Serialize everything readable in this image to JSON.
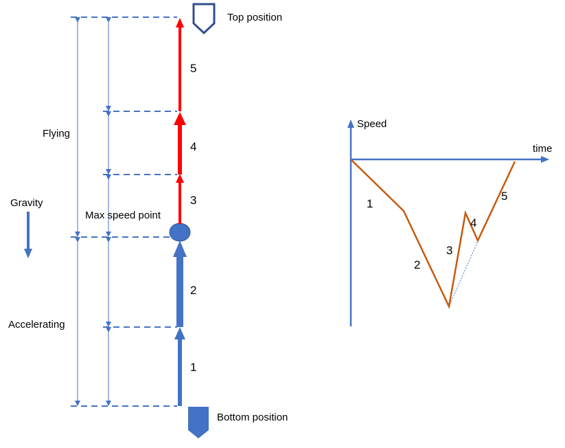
{
  "labels": {
    "top_position": "Top position",
    "bottom_position": "Bottom position",
    "flying": "Flying",
    "gravity": "Gravity",
    "max_speed_point": "Max speed point",
    "accelerating": "Accelerating",
    "speed_axis": "Speed",
    "time_axis": "time"
  },
  "segments_left": [
    "1",
    "2",
    "3",
    "4",
    "5"
  ],
  "segments_graph": [
    "1",
    "2",
    "3",
    "4",
    "5"
  ],
  "colors": {
    "blue": "#4472c4",
    "dashed_blue": "#4472c4",
    "red": "#ff0000",
    "orange": "#c55a11",
    "navy": "#2f4f8f"
  }
}
